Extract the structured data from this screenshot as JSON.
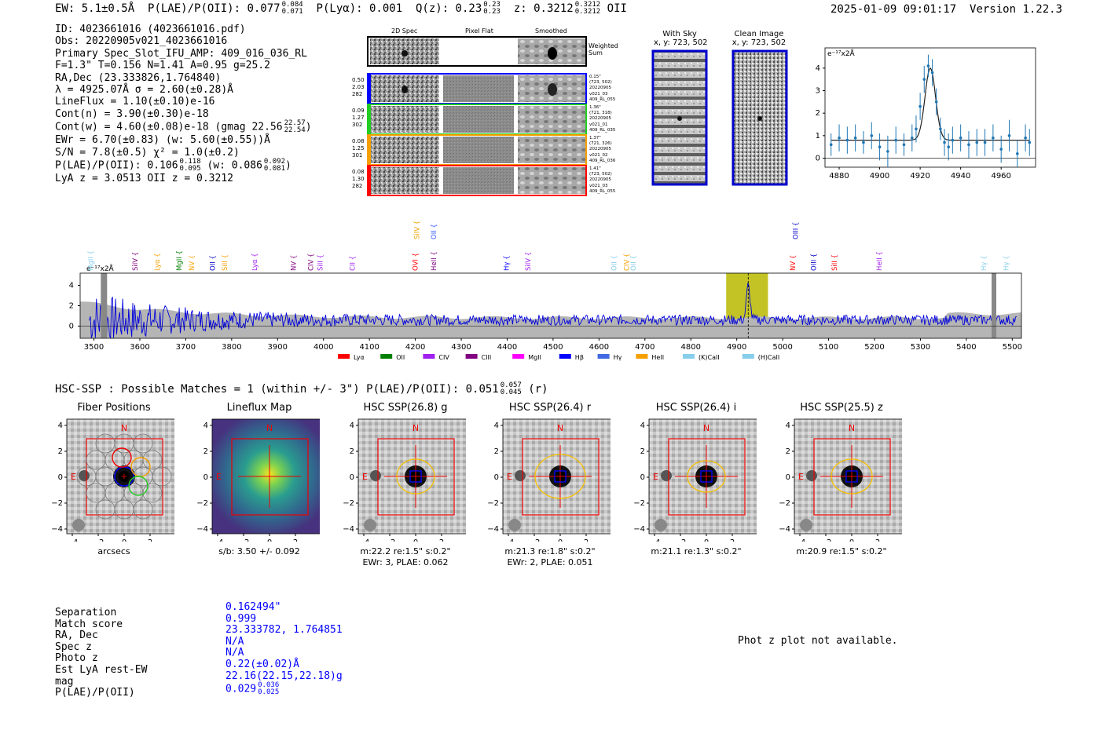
{
  "header": {
    "ew": "EW: 5.1±0.5Å",
    "plae": "P(LAE)/P(OII): 0.077",
    "plae_hi": "0.084",
    "plae_lo": "0.071",
    "plya": "P(Lyα): 0.001",
    "qz": "Q(z): 0.23",
    "qz_hi": "0.23",
    "qz_lo": "0.23",
    "z": "z: 0.3212",
    "z_hi": "0.3212",
    "z_lo": "0.3212",
    "z_line": "OII",
    "datetime": "2025-01-09 09:01:17",
    "version": "Version 1.22.3"
  },
  "info": {
    "id": "ID: 4023661016 (4023661016.pdf)",
    "obs": "Obs: 20220905v021_4023661016",
    "primary": "Primary Spec_Slot_IFU_AMP: 409_016_036_RL",
    "fiber": "F=1.3\"  T=0.156  N=1.41  A=0.95  g=25.2",
    "radec": "RA,Dec (23.333826,1.764840)",
    "lambda": "λ = 4925.07Å  σ = 2.60(±0.28)Å",
    "lineflux": "LineFlux = 1.10(±0.10)e-16",
    "contn": "Cont(n) = 3.90(±0.30)e-18",
    "contw": "Cont(w) = 4.60(±0.08)e-18 (gmag 22.56",
    "gmag_hi": "22.57",
    "gmag_lo": "22.54",
    "ewr": "EWr = 6.70(±0.83) (w: 5.60(±0.55))Å",
    "sn": "S/N = 7.8(±0.5)  χ² = 1.0(±0.2)",
    "plae": "P(LAE)/P(OII): 0.106",
    "plae_hi": "0.118",
    "plae_lo": "0.095",
    "plae_w": "(w: 0.086",
    "plae_w_hi": "0.092",
    "plae_w_lo": "0.081",
    "lya": "LyA z = 3.0513  OII z = 0.3212"
  },
  "cutouts": {
    "col_2d": "2D Spec",
    "col_flat": "Pixel Flat",
    "col_smooth": "Smoothed",
    "weighted": "Weighted Sum",
    "rows": [
      {
        "left": [
          "0.50",
          "2.03",
          "282"
        ],
        "right": [
          "0.15\"",
          "(723, 502)",
          "20220905",
          "v021_03",
          "409_RL_055"
        ],
        "color": "#0000ff"
      },
      {
        "left": [
          "0.09",
          "1.27",
          "302"
        ],
        "right": [
          "1.36\"",
          "(721, 318)",
          "20220905",
          "v021_01",
          "409_RL_035"
        ],
        "color": "#22cc22"
      },
      {
        "left": [
          "0.08",
          "1.25",
          "301"
        ],
        "right": [
          "1.37\"",
          "(721, 326)",
          "20220905",
          "v021_02",
          "409_RL_036"
        ],
        "color": "#f5a000"
      },
      {
        "left": [
          "0.08",
          "1.30",
          "282"
        ],
        "right": [
          "1.41\"",
          "(723, 502)",
          "20220905",
          "v021_03",
          "409_RL_055"
        ],
        "color": "#ff0000"
      }
    ],
    "with_sky": "With Sky",
    "with_sky_xy": "x, y: 723, 502",
    "clean": "Clean Image",
    "clean_xy": "x, y: 723, 502"
  },
  "chart_data": [
    {
      "type": "scatter",
      "title": "",
      "unit_label": "e⁻¹⁷x2Å",
      "xlim": [
        4873,
        4977
      ],
      "ylim": [
        -0.4,
        4.9
      ],
      "xticks": [
        "4880",
        "4900",
        "4920",
        "4940",
        "4960"
      ],
      "yticks": [
        "0",
        "1",
        "2",
        "3",
        "4"
      ],
      "x": [
        4876,
        4880,
        4884,
        4888,
        4892,
        4896,
        4900,
        4904,
        4908,
        4912,
        4916,
        4918,
        4920,
        4922,
        4924,
        4926,
        4928,
        4930,
        4932,
        4934,
        4936,
        4940,
        4944,
        4948,
        4952,
        4956,
        4960,
        4964,
        4968,
        4972,
        4974
      ],
      "y": [
        0.6,
        0.9,
        0.8,
        0.9,
        0.7,
        1.0,
        0.5,
        0.3,
        0.8,
        0.6,
        0.9,
        1.3,
        2.3,
        3.5,
        4.1,
        3.8,
        2.5,
        1.3,
        0.7,
        0.5,
        0.8,
        0.9,
        0.6,
        0.7,
        0.7,
        0.9,
        0.4,
        1.0,
        0.2,
        0.9,
        0.7
      ],
      "err": [
        0.5,
        0.6,
        0.6,
        0.6,
        0.5,
        0.6,
        0.6,
        0.7,
        0.6,
        0.5,
        0.6,
        0.6,
        0.6,
        0.6,
        0.5,
        0.6,
        0.6,
        0.5,
        0.6,
        0.6,
        0.6,
        0.6,
        0.6,
        0.6,
        0.6,
        0.6,
        0.6,
        0.7,
        0.6,
        0.6,
        0.6
      ],
      "model_center": 4925,
      "model_sigma": 2.6,
      "model_peak": 3.2,
      "model_base": 0.8
    },
    {
      "type": "line",
      "unit_label": "e⁻¹⁷x2Å",
      "xlim": [
        3470,
        5520
      ],
      "ylim": [
        -1.2,
        5.2
      ],
      "xticks": [
        "3500",
        "3600",
        "3700",
        "3800",
        "3900",
        "4000",
        "4100",
        "4200",
        "4300",
        "4400",
        "4500",
        "4600",
        "4700",
        "4800",
        "4900",
        "5000",
        "5100",
        "5200",
        "5300",
        "5400",
        "5500"
      ],
      "yticks": [
        "0",
        "2",
        "4"
      ],
      "highlight_band": [
        4877,
        4968
      ],
      "line_center": 4925,
      "lines_top": [
        {
          "label": "SiIV",
          "x": 4203,
          "color": "#f5a000"
        },
        {
          "label": "OII",
          "x": 4240,
          "color": "#3355ff"
        },
        {
          "label": "OIII",
          "x": 5028,
          "color": "#0000cc"
        }
      ],
      "lines": [
        {
          "label": "MgII",
          "x": 3493,
          "color": "#87ceeb"
        },
        {
          "label": "SiIV",
          "x": 3590,
          "color": "#800080"
        },
        {
          "label": "Lyα",
          "x": 3638,
          "color": "#f5a000"
        },
        {
          "label": "MgII",
          "x": 3686,
          "color": "#008000"
        },
        {
          "label": "NV",
          "x": 3713,
          "color": "#f5a000"
        },
        {
          "label": "OII",
          "x": 3758,
          "color": "#0000cc"
        },
        {
          "label": "SiII",
          "x": 3785,
          "color": "#f5a000"
        },
        {
          "label": "Lyα",
          "x": 3850,
          "color": "#a020f0"
        },
        {
          "label": "NV",
          "x": 3935,
          "color": "#800080"
        },
        {
          "label": "CIV",
          "x": 3972,
          "color": "#800080"
        },
        {
          "label": "SiII",
          "x": 3993,
          "color": "#a020f0"
        },
        {
          "label": "CII",
          "x": 4063,
          "color": "#a020f0"
        },
        {
          "label": "OVI",
          "x": 4200,
          "color": "#ff0000"
        },
        {
          "label": "HeII",
          "x": 4240,
          "color": "#800080"
        },
        {
          "label": "Hγ",
          "x": 4398,
          "color": "#0000ff"
        },
        {
          "label": "SiIV",
          "x": 4445,
          "color": "#a020f0"
        },
        {
          "label": "OII",
          "x": 4633,
          "color": "#87ceeb"
        },
        {
          "label": "CIV",
          "x": 4660,
          "color": "#f5a000"
        },
        {
          "label": "OII",
          "x": 4675,
          "color": "#87ceeb"
        },
        {
          "label": "NV",
          "x": 5022,
          "color": "#ff0000"
        },
        {
          "label": "OIII",
          "x": 5067,
          "color": "#0000cc"
        },
        {
          "label": "SiII",
          "x": 5113,
          "color": "#ff0000"
        },
        {
          "label": "HeII",
          "x": 5210,
          "color": "#a020f0"
        },
        {
          "label": "Hγ",
          "x": 5438,
          "color": "#87ceeb"
        },
        {
          "label": "Hγ",
          "x": 5487,
          "color": "#87ceeb"
        }
      ],
      "legend": [
        {
          "label": "Lyα",
          "color": "#ff0000"
        },
        {
          "label": "OII",
          "color": "#008000"
        },
        {
          "label": "CIV",
          "color": "#a020f0"
        },
        {
          "label": "CIII",
          "color": "#800080"
        },
        {
          "label": "MgII",
          "color": "#ff00ff"
        },
        {
          "label": "Hβ",
          "color": "#0000ff"
        },
        {
          "label": "Hγ",
          "color": "#4169e1"
        },
        {
          "label": "HeII",
          "color": "#f5a000"
        },
        {
          "label": "(K)CaII",
          "color": "#87ceeb"
        },
        {
          "label": "(H)CaII",
          "color": "#87ceeb"
        }
      ]
    }
  ],
  "hsc": {
    "title": "HSC-SSP : Possible Matches = 1 (within +/- 3\")  P(LAE)/P(OII): 0.051",
    "title_hi": "0.057",
    "title_lo": "0.045",
    "title_suffix": "(r)",
    "panels": [
      {
        "title": "Fiber Positions",
        "caption1": "arcsecs",
        "caption2": ""
      },
      {
        "title": "Lineflux Map",
        "caption1": "s/b: 3.50 +/- 0.092",
        "caption2": ""
      },
      {
        "title": "HSC SSP(26.8) g",
        "caption1": "m:22.2  re:1.5\"  s:0.2\"",
        "caption2": "EWr: 3, PLAE: 0.062"
      },
      {
        "title": "HSC SSP(26.4) r",
        "caption1": "m:21.3  re:1.8\"  s:0.2\"",
        "caption2": "EWr: 2, PLAE: 0.051"
      },
      {
        "title": "HSC SSP(26.4) i",
        "caption1": "m:21.1  re:1.3\"  s:0.2\"",
        "caption2": ""
      },
      {
        "title": "HSC SSP(25.5) z",
        "caption1": "m:20.9  re:1.5\"  s:0.2\"",
        "caption2": ""
      }
    ],
    "axis_ticks_x": [
      "−4",
      "−2",
      "0",
      "2",
      "4"
    ],
    "axis_ticks_y": [
      "4",
      "2",
      "0",
      "−2",
      "−4"
    ],
    "north": "N",
    "east": "E"
  },
  "match": {
    "labels": [
      "Separation",
      "Match score",
      "RA, Dec",
      "Spec z",
      "Photo z",
      "Est LyA rest-EW",
      "mag",
      "P(LAE)/P(OII)"
    ],
    "values": [
      "0.162494\"",
      "0.999",
      "23.333782, 1.764851",
      "N/A",
      "N/A",
      "0.22(±0.02)Å",
      "22.16(22.15,22.18)g",
      "0.029"
    ],
    "plae_hi": "0.036",
    "plae_lo": "0.025",
    "photz_note": "Phot z plot not available."
  }
}
